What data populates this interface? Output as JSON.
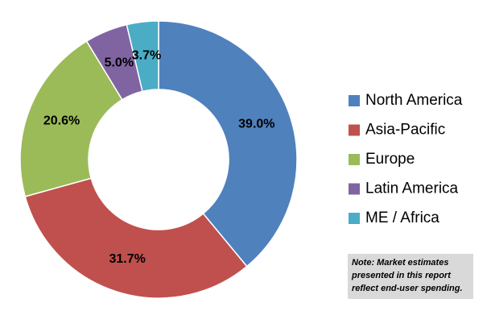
{
  "chart_data": {
    "type": "donut",
    "categories": [
      "North America",
      "Asia-Pacific",
      "Europe",
      "Latin America",
      "ME / Africa"
    ],
    "values": [
      39,
      31.7,
      20.6,
      5,
      3.7
    ],
    "value_labels": [
      "39.0%",
      "31.7%",
      "20.6%",
      "5.0%",
      "3.7%"
    ],
    "colors": [
      "#4f81bd",
      "#c0504d",
      "#9bbb59",
      "#8064a2",
      "#4bacc6"
    ],
    "legend": "right",
    "note": [
      "Note: Market estimates",
      "presented in this report",
      "reflect end-user spending."
    ]
  }
}
